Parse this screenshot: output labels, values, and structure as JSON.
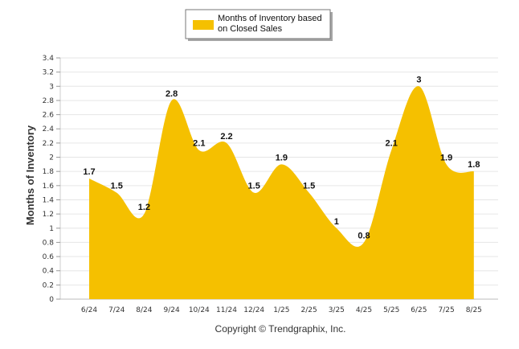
{
  "chart_data": {
    "type": "area",
    "categories": [
      "6/24",
      "7/24",
      "8/24",
      "9/24",
      "10/24",
      "11/24",
      "12/24",
      "1/25",
      "2/25",
      "3/25",
      "4/25",
      "5/25",
      "6/25",
      "7/25",
      "8/25"
    ],
    "series": [
      {
        "name": "Months of Inventory based on Closed Sales",
        "values": [
          1.7,
          1.5,
          1.2,
          2.8,
          2.1,
          2.2,
          1.5,
          1.9,
          1.5,
          1,
          0.8,
          2.1,
          3,
          1.9,
          1.8
        ],
        "color": "#F5C000"
      }
    ],
    "data_labels": [
      "1.7",
      "1.5",
      "1.2",
      "2.8",
      "2.1",
      "2.2",
      "1.5",
      "1.9",
      "1.5",
      "1",
      "0.8",
      "2.1",
      "3",
      "1.9",
      "1.8"
    ],
    "legend_lines": [
      "Months of Inventory based",
      "on Closed Sales"
    ],
    "legend_position": "top",
    "ylabel": "Months of Inventory",
    "xlabel": "",
    "ylim": [
      0,
      3.4
    ],
    "yticks": [
      "0",
      "0.2",
      "0.4",
      "0.6",
      "0.8",
      "1",
      "1.2",
      "1.4",
      "1.6",
      "1.8",
      "2",
      "2.2",
      "2.4",
      "2.6",
      "2.8",
      "3",
      "3.2",
      "3.4"
    ],
    "grid": true,
    "grid_color": "#e6e6e6",
    "copyright": "Copyright © Trendgraphix, Inc."
  }
}
